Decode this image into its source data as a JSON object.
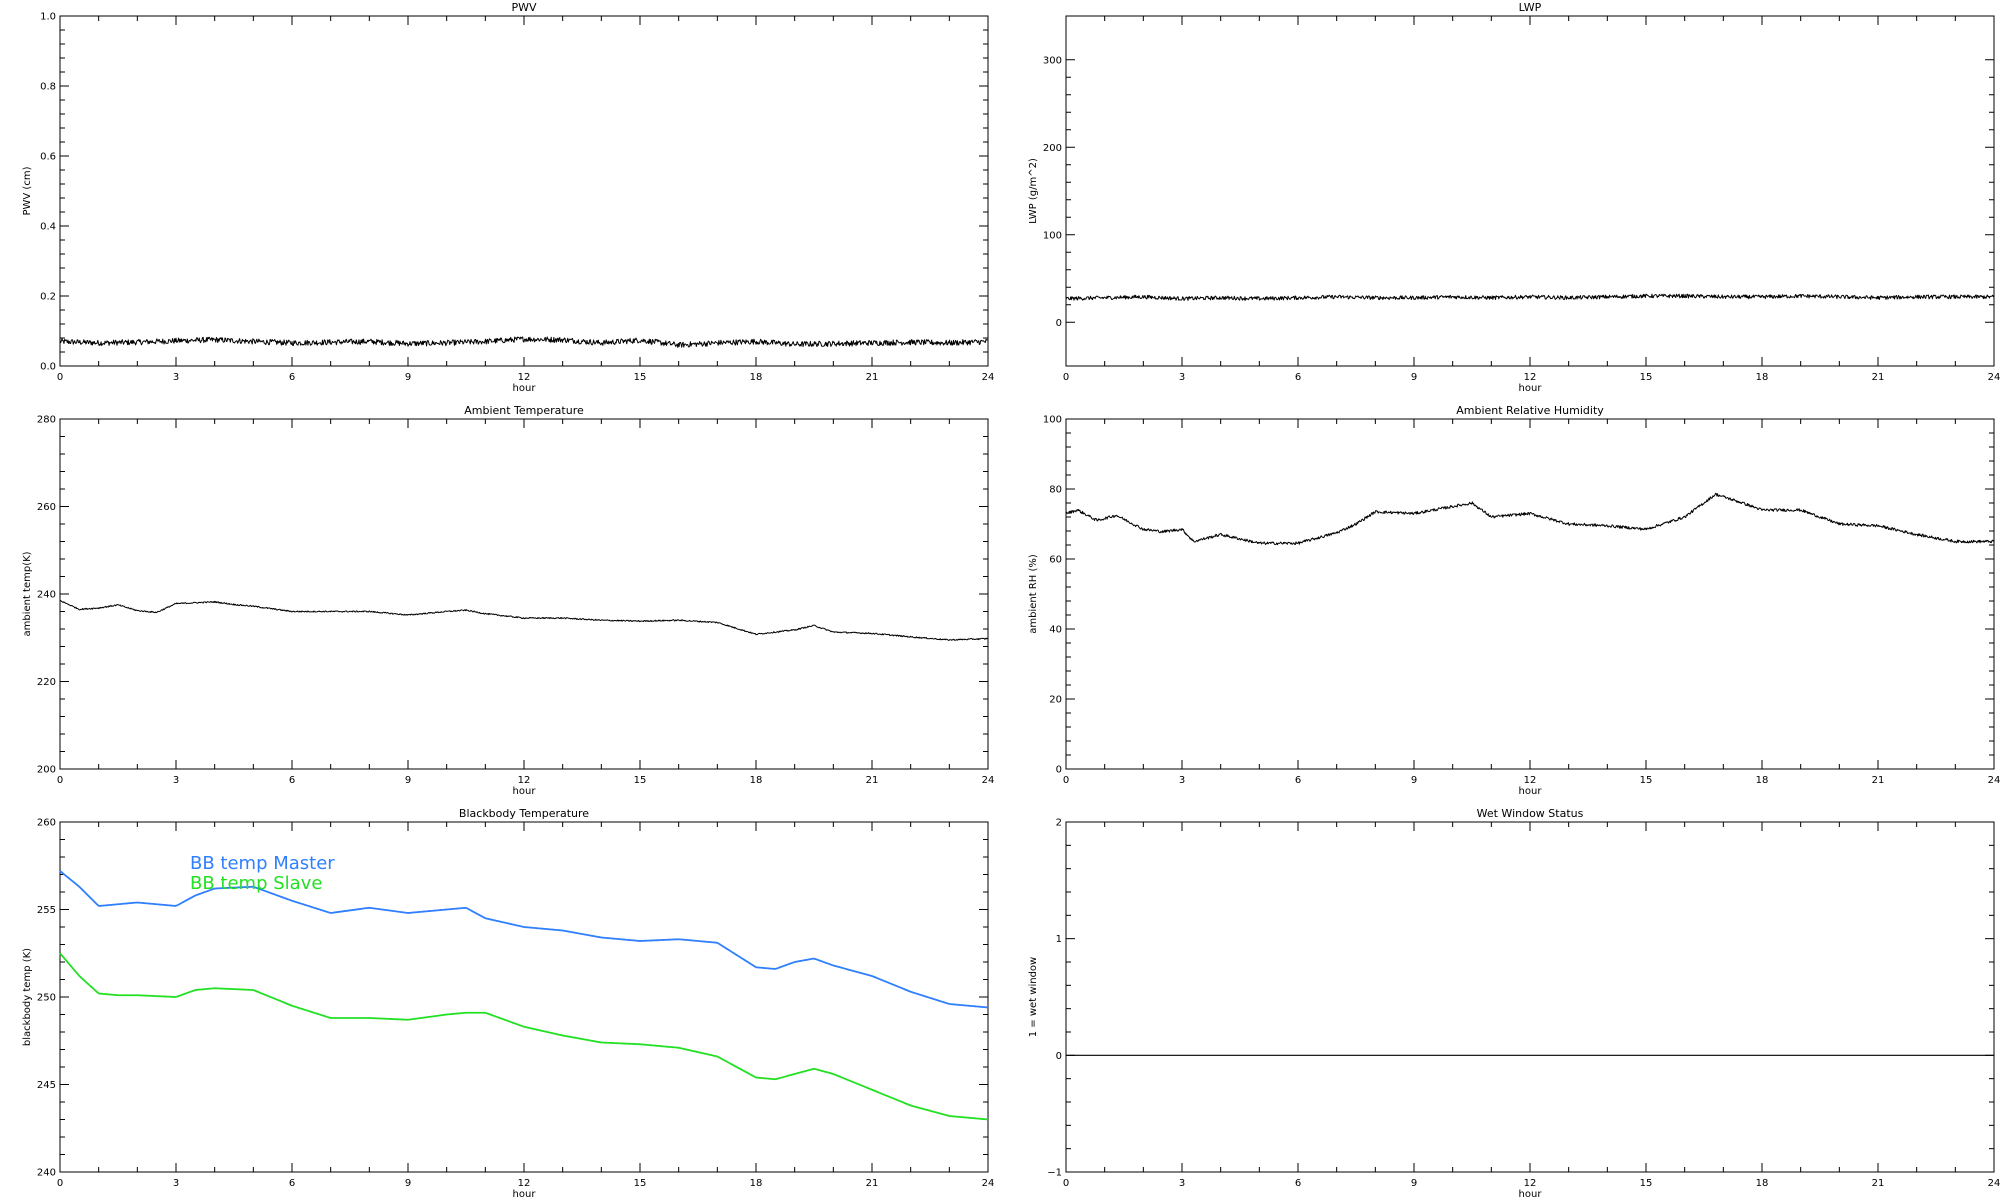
{
  "chart_data": [
    {
      "type": "line",
      "title": "PWV",
      "xlabel": "hour",
      "ylabel": "PWV (cm)",
      "xlim": [
        0,
        24
      ],
      "ylim": [
        0,
        1
      ],
      "xticks": [
        0,
        3,
        6,
        9,
        12,
        15,
        18,
        21,
        24
      ],
      "yticks": [
        "0.0",
        "0.2",
        "0.4",
        "0.6",
        "0.8",
        "1.0"
      ],
      "y_tick_values": [
        0,
        0.2,
        0.4,
        0.6,
        0.8,
        1.0
      ],
      "grid": false,
      "series": [
        {
          "color": "#000000",
          "noisy": true,
          "noise_amplitude": 0.008,
          "x": [
            0,
            1,
            2,
            3,
            4,
            5,
            6,
            7,
            8,
            9,
            10,
            11,
            12,
            13,
            14,
            15,
            16,
            17,
            18,
            19,
            20,
            21,
            22,
            23,
            24
          ],
          "y": [
            0.07,
            0.066,
            0.068,
            0.072,
            0.075,
            0.07,
            0.066,
            0.068,
            0.07,
            0.064,
            0.066,
            0.07,
            0.077,
            0.075,
            0.066,
            0.074,
            0.06,
            0.066,
            0.07,
            0.062,
            0.064,
            0.066,
            0.068,
            0.066,
            0.07
          ]
        }
      ]
    },
    {
      "type": "line",
      "title": "LWP",
      "xlabel": "hour",
      "ylabel": "LWP (g/m^2)",
      "xlim": [
        0,
        24
      ],
      "ylim": [
        -50,
        350
      ],
      "xticks": [
        0,
        3,
        6,
        9,
        12,
        15,
        18,
        21,
        24
      ],
      "yticks": [
        "0",
        "100",
        "200",
        "300"
      ],
      "y_tick_values": [
        0,
        100,
        200,
        300
      ],
      "grid": false,
      "series": [
        {
          "color": "#000000",
          "noisy": true,
          "noise_amplitude": 2.2,
          "x": [
            0,
            1,
            2,
            3,
            4,
            5,
            6,
            7,
            8,
            9,
            10,
            11,
            12,
            13,
            14,
            15,
            16,
            17,
            18,
            19,
            20,
            21,
            22,
            23,
            24
          ],
          "y": [
            27,
            28,
            29,
            27,
            28,
            27,
            28,
            29,
            28,
            28,
            29,
            28,
            29,
            28,
            29,
            30,
            30,
            29,
            29,
            30,
            29,
            28,
            29,
            29,
            29
          ]
        }
      ]
    },
    {
      "type": "line",
      "title": "Ambient Temperature",
      "xlabel": "hour",
      "ylabel": "ambient temp(K)",
      "xlim": [
        0,
        24
      ],
      "ylim": [
        200,
        280
      ],
      "xticks": [
        0,
        3,
        6,
        9,
        12,
        15,
        18,
        21,
        24
      ],
      "yticks": [
        "200",
        "220",
        "240",
        "260",
        "280"
      ],
      "y_tick_values": [
        200,
        220,
        240,
        260,
        280
      ],
      "grid": false,
      "series": [
        {
          "color": "#000000",
          "noisy": true,
          "noise_amplitude": 0.15,
          "x": [
            0,
            0.5,
            1,
            1.5,
            2,
            2.5,
            3,
            3.5,
            4,
            4.5,
            5,
            6,
            7,
            8,
            9,
            10,
            10.5,
            11,
            12,
            13,
            14,
            15,
            16,
            17,
            18,
            19,
            19.5,
            20,
            21,
            22,
            23,
            24
          ],
          "y": [
            238.5,
            236.5,
            236.8,
            237.5,
            236.2,
            235.8,
            237.8,
            238,
            238.2,
            237.6,
            237.2,
            236,
            236,
            236,
            235.2,
            236,
            236.3,
            235.5,
            234.5,
            234.5,
            234,
            233.8,
            234,
            233.5,
            230.8,
            231.8,
            232.8,
            231.3,
            231,
            230.2,
            229.5,
            229.8
          ]
        }
      ]
    },
    {
      "type": "line",
      "title": "Ambient Relative Humidity",
      "xlabel": "hour",
      "ylabel": "ambient RH (%)",
      "xlim": [
        0,
        24
      ],
      "ylim": [
        0,
        100
      ],
      "xticks": [
        0,
        3,
        6,
        9,
        12,
        15,
        18,
        21,
        24
      ],
      "yticks": [
        "0",
        "20",
        "40",
        "60",
        "80",
        "100"
      ],
      "y_tick_values": [
        0,
        20,
        40,
        60,
        80,
        100
      ],
      "grid": false,
      "series": [
        {
          "color": "#000000",
          "noisy": true,
          "noise_amplitude": 0.4,
          "x": [
            0,
            0.3,
            0.8,
            1.3,
            2,
            2.5,
            3,
            3.3,
            4,
            5,
            6,
            7,
            7.5,
            8,
            9,
            10,
            10.5,
            11,
            12,
            13,
            14,
            15,
            16,
            16.8,
            17.5,
            18,
            19,
            20,
            21,
            22,
            23,
            24
          ],
          "y": [
            73,
            74,
            71,
            72.5,
            68.5,
            67.8,
            68.5,
            65,
            67,
            64.5,
            64.5,
            67.5,
            70,
            73.5,
            73,
            75,
            76,
            72,
            73,
            70,
            69.5,
            68.5,
            72,
            78.5,
            76,
            74,
            74,
            70,
            69.5,
            67,
            65,
            65
          ]
        }
      ]
    },
    {
      "type": "line",
      "title": "Blackbody Temperature",
      "xlabel": "hour",
      "ylabel": "blackbody temp (K)",
      "xlim": [
        0,
        24
      ],
      "ylim": [
        240,
        260
      ],
      "xticks": [
        0,
        3,
        6,
        9,
        12,
        15,
        18,
        21,
        24
      ],
      "yticks": [
        "240",
        "245",
        "250",
        "255",
        "260"
      ],
      "y_tick_values": [
        240,
        245,
        250,
        255,
        260
      ],
      "grid": false,
      "legend": "top-left",
      "series": [
        {
          "name": "BB temp Master",
          "color": "#2f7fff",
          "noisy": false,
          "x": [
            0,
            0.5,
            1,
            1.5,
            2,
            3,
            3.5,
            4,
            5,
            6,
            7,
            8,
            9,
            10,
            10.5,
            11,
            12,
            13,
            14,
            15,
            16,
            17,
            18,
            18.5,
            19,
            19.5,
            20,
            21,
            22,
            23,
            24
          ],
          "y": [
            257.2,
            256.3,
            255.2,
            255.3,
            255.4,
            255.2,
            255.8,
            256.2,
            256.3,
            255.5,
            254.8,
            255.1,
            254.8,
            255,
            255.1,
            254.5,
            254,
            253.8,
            253.4,
            253.2,
            253.3,
            253.1,
            251.7,
            251.6,
            252,
            252.2,
            251.8,
            251.2,
            250.3,
            249.6,
            249.4
          ]
        },
        {
          "name": "BB temp Slave",
          "color": "#22e022",
          "noisy": false,
          "x": [
            0,
            0.5,
            1,
            1.5,
            2,
            3,
            3.5,
            4,
            5,
            6,
            7,
            8,
            9,
            10,
            10.5,
            11,
            12,
            13,
            14,
            15,
            16,
            17,
            18,
            18.5,
            19,
            19.5,
            20,
            21,
            22,
            23,
            24
          ],
          "y": [
            252.5,
            251.2,
            250.2,
            250.1,
            250.1,
            250,
            250.4,
            250.5,
            250.4,
            249.5,
            248.8,
            248.8,
            248.7,
            249,
            249.1,
            249.1,
            248.3,
            247.8,
            247.4,
            247.3,
            247.1,
            246.6,
            245.4,
            245.3,
            245.6,
            245.9,
            245.6,
            244.7,
            243.8,
            243.2,
            243
          ]
        }
      ]
    },
    {
      "type": "line",
      "title": "Wet Window Status",
      "xlabel": "hour",
      "ylabel": "1 = wet window",
      "xlim": [
        0,
        24
      ],
      "ylim": [
        -1,
        2
      ],
      "xticks": [
        0,
        3,
        6,
        9,
        12,
        15,
        18,
        21,
        24
      ],
      "yticks": [
        "−1",
        "0",
        "1",
        "2"
      ],
      "y_tick_values": [
        -1,
        0,
        1,
        2
      ],
      "grid": false,
      "series": [
        {
          "color": "#000000",
          "noisy": false,
          "x": [
            0,
            24
          ],
          "y": [
            0,
            0
          ]
        }
      ]
    }
  ]
}
